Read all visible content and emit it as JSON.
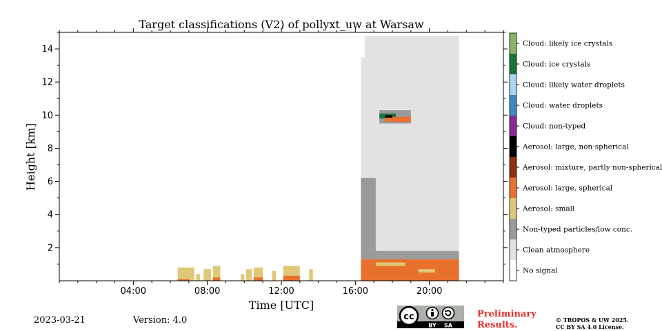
{
  "chart_data": {
    "type": "heatmap",
    "title": "Target classifications (V2) of pollyxt_uw at Warsaw",
    "xlabel": "Time [UTC]",
    "ylabel": "Height [km]",
    "xlim_hours": [
      0,
      24
    ],
    "ylim_km": [
      0,
      15
    ],
    "x_ticks": [
      {
        "hour": 4,
        "label": "04:00"
      },
      {
        "hour": 8,
        "label": "08:00"
      },
      {
        "hour": 12,
        "label": "12:00"
      },
      {
        "hour": 16,
        "label": "16:00"
      },
      {
        "hour": 20,
        "label": "20:00"
      }
    ],
    "y_ticks": [
      {
        "km": 2,
        "label": "2"
      },
      {
        "km": 4,
        "label": "4"
      },
      {
        "km": 6,
        "label": "6"
      },
      {
        "km": 8,
        "label": "8"
      },
      {
        "km": 10,
        "label": "10"
      },
      {
        "km": 12,
        "label": "12"
      },
      {
        "km": 14,
        "label": "14"
      }
    ],
    "legend_placement": "right colorbar",
    "classes": [
      {
        "label": "No signal",
        "color": "#ffffff"
      },
      {
        "label": "Clean atmosphere",
        "color": "#e2e2e2"
      },
      {
        "label": "Non-typed particles/low conc.",
        "color": "#9a9a9a"
      },
      {
        "label": "Aerosol: small",
        "color": "#e0c879"
      },
      {
        "label": "Aerosol: large, spherical",
        "color": "#e8712e"
      },
      {
        "label": "Aerosol: mixture, partly non-spherical",
        "color": "#912d10"
      },
      {
        "label": "Aerosol: large, non-spherical",
        "color": "#000000"
      },
      {
        "label": "Cloud: non-typed",
        "color": "#8a2996"
      },
      {
        "label": "Cloud: water droplets",
        "color": "#3f88c8"
      },
      {
        "label": "Cloud: likely water droplets",
        "color": "#aad5f3"
      },
      {
        "label": "Cloud: ice crystals",
        "color": "#17753b"
      },
      {
        "label": "Cloud: likely ice crystals",
        "color": "#8cb368"
      }
    ],
    "regions": [
      {
        "class": "Clean atmosphere",
        "t0": 16.3,
        "t1": 21.6,
        "h0": 1.2,
        "h1": 13.5
      },
      {
        "class": "Clean atmosphere",
        "t0": 16.5,
        "t1": 21.6,
        "h0": 13.5,
        "h1": 14.8
      },
      {
        "class": "Non-typed particles/low conc.",
        "t0": 16.3,
        "t1": 21.6,
        "h0": 1.3,
        "h1": 1.8
      },
      {
        "class": "Non-typed particles/low conc.",
        "t0": 16.3,
        "t1": 17.1,
        "h0": 1.8,
        "h1": 6.2
      },
      {
        "class": "Aerosol: large, spherical",
        "t0": 16.3,
        "t1": 21.6,
        "h0": 0.0,
        "h1": 1.3
      },
      {
        "class": "Aerosol: small",
        "t0": 17.1,
        "t1": 18.7,
        "h0": 0.9,
        "h1": 1.1
      },
      {
        "class": "Aerosol: small",
        "t0": 19.4,
        "t1": 20.3,
        "h0": 0.5,
        "h1": 0.7
      },
      {
        "class": "Non-typed particles/low conc.",
        "t0": 17.3,
        "t1": 19.0,
        "h0": 9.5,
        "h1": 10.3
      },
      {
        "class": "Cloud: ice crystals",
        "t0": 17.3,
        "t1": 18.2,
        "h0": 9.8,
        "h1": 10.1
      },
      {
        "class": "Aerosol: large, spherical",
        "t0": 17.6,
        "t1": 19.0,
        "h0": 9.6,
        "h1": 9.9
      },
      {
        "class": "Aerosol: large, non-spherical",
        "t0": 17.6,
        "t1": 18.0,
        "h0": 9.85,
        "h1": 10.0
      },
      {
        "class": "Aerosol: small",
        "t0": 6.4,
        "t1": 7.3,
        "h0": 0.0,
        "h1": 0.8
      },
      {
        "class": "Aerosol: large, spherical",
        "t0": 6.4,
        "t1": 7.0,
        "h0": 0.0,
        "h1": 0.1
      },
      {
        "class": "Aerosol: small",
        "t0": 7.4,
        "t1": 7.6,
        "h0": 0.0,
        "h1": 0.4
      },
      {
        "class": "Aerosol: small",
        "t0": 7.8,
        "t1": 8.2,
        "h0": 0.0,
        "h1": 0.7
      },
      {
        "class": "Aerosol: small",
        "t0": 8.3,
        "t1": 8.7,
        "h0": 0.0,
        "h1": 0.9
      },
      {
        "class": "Aerosol: large, spherical",
        "t0": 8.3,
        "t1": 8.7,
        "h0": 0.0,
        "h1": 0.2
      },
      {
        "class": "Aerosol: small",
        "t0": 9.8,
        "t1": 10.0,
        "h0": 0.0,
        "h1": 0.4
      },
      {
        "class": "Aerosol: small",
        "t0": 10.1,
        "t1": 10.4,
        "h0": 0.0,
        "h1": 0.7
      },
      {
        "class": "Aerosol: small",
        "t0": 10.5,
        "t1": 11.0,
        "h0": 0.0,
        "h1": 0.8
      },
      {
        "class": "Aerosol: large, spherical",
        "t0": 10.5,
        "t1": 11.0,
        "h0": 0.0,
        "h1": 0.2
      },
      {
        "class": "Aerosol: small",
        "t0": 11.5,
        "t1": 11.7,
        "h0": 0.0,
        "h1": 0.6
      },
      {
        "class": "Aerosol: small",
        "t0": 12.1,
        "t1": 13.0,
        "h0": 0.0,
        "h1": 0.9
      },
      {
        "class": "Aerosol: large, spherical",
        "t0": 12.1,
        "t1": 13.0,
        "h0": 0.0,
        "h1": 0.3
      },
      {
        "class": "Aerosol: small",
        "t0": 13.5,
        "t1": 13.7,
        "h0": 0.0,
        "h1": 0.7
      }
    ]
  },
  "footer": {
    "date": "2023-03-21",
    "version": "Version: 4.0",
    "preliminary_line1": "Preliminary",
    "preliminary_line2": "Results.",
    "copyright_line1": "© TROPOS & UW 2025.",
    "copyright_line2": "CC BY SA 4.0 License."
  },
  "license_badge": {
    "cc": "cc",
    "by": "BY",
    "sa": "SA"
  }
}
